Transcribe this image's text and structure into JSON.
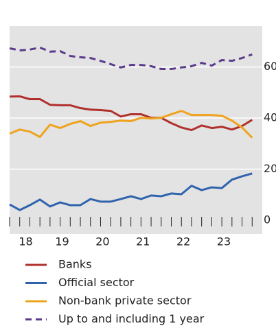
{
  "chart_data": {
    "type": "line",
    "x": [
      2018,
      2018.25,
      2018.5,
      2018.75,
      2019,
      2019.25,
      2019.5,
      2019.75,
      2020,
      2020.25,
      2020.5,
      2020.75,
      2021,
      2021.25,
      2021.5,
      2021.75,
      2022,
      2022.25,
      2022.5,
      2022.75,
      2023,
      2023.25,
      2023.5,
      2023.75,
      2024
    ],
    "series": [
      {
        "name": "Banks",
        "color": "#b0302c",
        "dash": false,
        "values": [
          48.4,
          48.5,
          47.4,
          47.4,
          45.2,
          45.0,
          45.0,
          43.9,
          43.3,
          43.1,
          42.8,
          40.6,
          41.5,
          41.5,
          40.1,
          40.1,
          38.0,
          36.3,
          35.3,
          37.1,
          36.1,
          36.6,
          35.5,
          36.9,
          39.3
        ]
      },
      {
        "name": "Official sector",
        "color": "#2f63ad",
        "dash": false,
        "values": [
          6.2,
          4.0,
          5.9,
          8.1,
          5.4,
          7.0,
          5.9,
          5.9,
          8.3,
          7.3,
          7.3,
          8.3,
          9.4,
          8.3,
          9.7,
          9.4,
          10.5,
          10.2,
          13.5,
          11.8,
          12.9,
          12.6,
          15.9,
          17.2,
          18.3
        ]
      },
      {
        "name": "Non-bank private sector",
        "color": "#efa31d",
        "dash": false,
        "values": [
          33.9,
          35.5,
          34.7,
          32.6,
          37.4,
          36.1,
          37.7,
          38.8,
          36.9,
          38.2,
          38.5,
          39.0,
          38.8,
          40.1,
          39.8,
          40.1,
          41.5,
          42.8,
          41.2,
          41.2,
          41.2,
          40.9,
          39.0,
          36.3,
          32.3
        ]
      },
      {
        "name": "Up to and including 1 year",
        "color": "#5b3a8c",
        "dash": true,
        "values": [
          67.3,
          66.5,
          66.8,
          67.6,
          66.0,
          66.2,
          64.3,
          63.8,
          63.5,
          62.4,
          61.1,
          59.8,
          60.8,
          60.8,
          60.3,
          59.2,
          59.2,
          59.8,
          60.3,
          61.6,
          60.5,
          62.7,
          62.4,
          63.5,
          64.9
        ]
      }
    ],
    "xlim": [
      2018,
      2024.25
    ],
    "xticks": [
      {
        "value": 2018.4,
        "label": "18"
      },
      {
        "value": 2019.3,
        "label": "19"
      },
      {
        "value": 2020.3,
        "label": "20"
      },
      {
        "value": 2021.3,
        "label": "21"
      },
      {
        "value": 2022.3,
        "label": "22"
      },
      {
        "value": 2023.3,
        "label": "23"
      }
    ],
    "xminorticks": [
      2018,
      2018.25,
      2018.5,
      2018.75,
      2019,
      2019.25,
      2019.5,
      2019.75,
      2020,
      2020.25,
      2020.5,
      2020.75,
      2021,
      2021.25,
      2021.5,
      2021.75,
      2022,
      2022.25,
      2022.5,
      2022.75,
      2023,
      2023.25,
      2023.5,
      2023.75,
      2024
    ],
    "ylim": [
      0,
      76
    ],
    "yticks": [
      0,
      20,
      40,
      60
    ],
    "grid": true
  }
}
